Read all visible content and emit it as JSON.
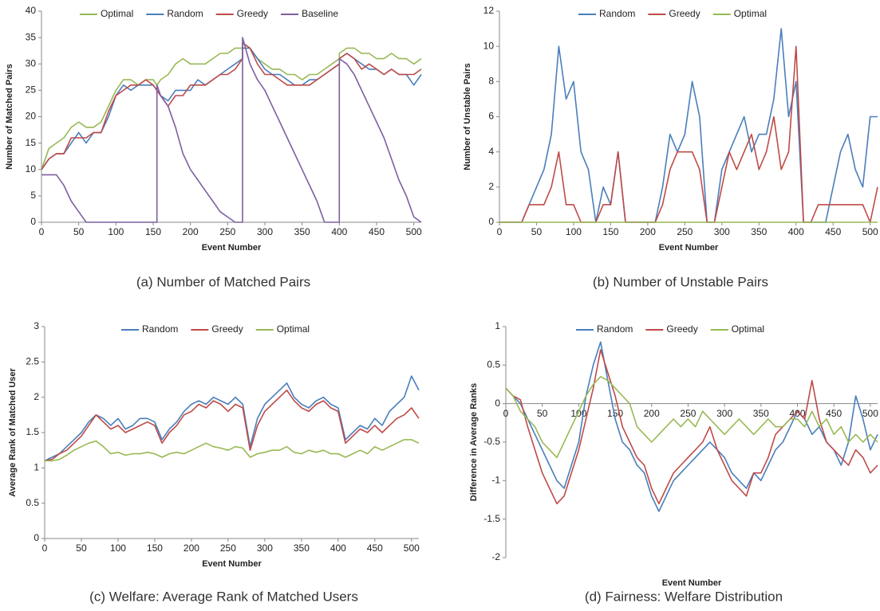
{
  "chart_data": [
    {
      "type": "line",
      "title": "(a) Number of Matched Pairs",
      "xlabel": "Event Number",
      "ylabel": "Number of Matched Pairs",
      "x": [
        0,
        10,
        20,
        30,
        40,
        50,
        60,
        70,
        80,
        90,
        100,
        110,
        120,
        130,
        140,
        150,
        155,
        155,
        160,
        170,
        180,
        190,
        200,
        210,
        220,
        230,
        240,
        250,
        260,
        270,
        270,
        280,
        290,
        300,
        310,
        320,
        330,
        340,
        350,
        360,
        370,
        380,
        390,
        400,
        400,
        410,
        420,
        430,
        440,
        450,
        460,
        470,
        480,
        490,
        500,
        510
      ],
      "xlim": [
        0,
        510
      ],
      "xticks": [
        0,
        50,
        100,
        150,
        200,
        250,
        300,
        350,
        400,
        450,
        500
      ],
      "ylim": [
        0,
        40
      ],
      "yticks": [
        0,
        5,
        10,
        15,
        20,
        25,
        30,
        35,
        40
      ],
      "series": [
        {
          "name": "Optimal",
          "color": "#98b954",
          "values": [
            10,
            14,
            15,
            16,
            18,
            19,
            18,
            18,
            19,
            22,
            25,
            27,
            27,
            26,
            27,
            27,
            26,
            26,
            27,
            28,
            30,
            31,
            30,
            30,
            30,
            31,
            32,
            32,
            33,
            33,
            34,
            33,
            31,
            30,
            29,
            29,
            28,
            28,
            27,
            28,
            28,
            29,
            30,
            31,
            32,
            33,
            33,
            32,
            32,
            31,
            31,
            32,
            31,
            31,
            30,
            31
          ]
        },
        {
          "name": "Random",
          "color": "#4a7ebb",
          "values": [
            10,
            12,
            13,
            13,
            15,
            17,
            15,
            17,
            17,
            20,
            24,
            26,
            25,
            26,
            26,
            26,
            25,
            25,
            24,
            23,
            25,
            25,
            25,
            27,
            26,
            27,
            28,
            29,
            30,
            31,
            33,
            33,
            31,
            29,
            28,
            28,
            27,
            26,
            26,
            27,
            27,
            28,
            29,
            30,
            31,
            32,
            31,
            30,
            29,
            29,
            28,
            29,
            28,
            28,
            26,
            28
          ]
        },
        {
          "name": "Greedy",
          "color": "#be4b48",
          "values": [
            10,
            12,
            13,
            13,
            16,
            16,
            16,
            17,
            17,
            21,
            24,
            25,
            26,
            26,
            27,
            26,
            25,
            25,
            24,
            22,
            24,
            24,
            26,
            26,
            26,
            27,
            28,
            28,
            29,
            31,
            34,
            33,
            30,
            28,
            28,
            27,
            26,
            26,
            26,
            26,
            27,
            28,
            29,
            30,
            31,
            32,
            31,
            29,
            30,
            29,
            28,
            29,
            28,
            28,
            28,
            29
          ]
        },
        {
          "name": "Baseline",
          "color": "#7d60a0",
          "values": [
            9,
            9,
            9,
            7,
            4,
            2,
            0,
            0,
            0,
            0,
            0,
            0,
            0,
            0,
            0,
            0,
            0,
            26,
            24,
            22,
            18,
            13,
            10,
            8,
            6,
            4,
            2,
            1,
            0,
            0,
            35,
            30,
            27,
            25,
            22,
            19,
            16,
            13,
            10,
            7,
            4,
            0,
            0,
            0,
            31,
            30,
            28,
            25,
            22,
            19,
            16,
            12,
            8,
            5,
            1,
            0
          ]
        }
      ]
    },
    {
      "type": "line",
      "title": "(b) Number of Unstable Pairs",
      "xlabel": "Event Number",
      "ylabel": "Number of Unstable Pairs",
      "x": [
        0,
        10,
        20,
        30,
        40,
        50,
        60,
        70,
        80,
        90,
        100,
        110,
        120,
        130,
        140,
        150,
        160,
        170,
        180,
        190,
        200,
        210,
        220,
        230,
        240,
        250,
        260,
        270,
        280,
        290,
        300,
        310,
        320,
        330,
        340,
        350,
        360,
        370,
        380,
        390,
        400,
        410,
        420,
        430,
        440,
        450,
        460,
        470,
        480,
        490,
        500,
        510
      ],
      "xlim": [
        0,
        510
      ],
      "xticks": [
        0,
        50,
        100,
        150,
        200,
        250,
        300,
        350,
        400,
        450,
        500
      ],
      "ylim": [
        0,
        12
      ],
      "yticks": [
        0,
        2,
        4,
        6,
        8,
        10,
        12
      ],
      "series": [
        {
          "name": "Random",
          "color": "#4a7ebb",
          "values": [
            0,
            0,
            0,
            0,
            1,
            2,
            3,
            5,
            10,
            7,
            8,
            4,
            3,
            0,
            2,
            1,
            4,
            0,
            0,
            0,
            0,
            0,
            2,
            5,
            4,
            5,
            8,
            6,
            0,
            0,
            3,
            4,
            5,
            6,
            4,
            5,
            5,
            7,
            11,
            6,
            8,
            0,
            0,
            0,
            0,
            2,
            4,
            5,
            3,
            2,
            6,
            6
          ]
        },
        {
          "name": "Greedy",
          "color": "#be4b48",
          "values": [
            0,
            0,
            0,
            0,
            1,
            1,
            1,
            2,
            4,
            1,
            1,
            0,
            0,
            0,
            1,
            1,
            4,
            0,
            0,
            0,
            0,
            0,
            1,
            3,
            4,
            4,
            4,
            3,
            0,
            0,
            2,
            4,
            3,
            4,
            5,
            3,
            4,
            6,
            3,
            4,
            10,
            0,
            0,
            1,
            1,
            1,
            1,
            1,
            1,
            1,
            0,
            2
          ]
        },
        {
          "name": "Optimal",
          "color": "#98b954",
          "values": [
            0,
            0,
            0,
            0,
            0,
            0,
            0,
            0,
            0,
            0,
            0,
            0,
            0,
            0,
            0,
            0,
            0,
            0,
            0,
            0,
            0,
            0,
            0,
            0,
            0,
            0,
            0,
            0,
            0,
            0,
            0,
            0,
            0,
            0,
            0,
            0,
            0,
            0,
            0,
            0,
            0,
            0,
            0,
            0,
            0,
            0,
            0,
            0,
            0,
            0,
            0,
            0
          ]
        }
      ]
    },
    {
      "type": "line",
      "title": "(c) Welfare: Average Rank of Matched Users",
      "xlabel": "Event Number",
      "ylabel": "Average Rank of Matched User",
      "x": [
        0,
        10,
        20,
        30,
        40,
        50,
        60,
        70,
        80,
        90,
        100,
        110,
        120,
        130,
        140,
        150,
        160,
        170,
        180,
        190,
        200,
        210,
        220,
        230,
        240,
        250,
        260,
        270,
        280,
        290,
        300,
        310,
        320,
        330,
        340,
        350,
        360,
        370,
        380,
        390,
        400,
        410,
        420,
        430,
        440,
        450,
        460,
        470,
        480,
        490,
        500,
        510
      ],
      "xlim": [
        0,
        510
      ],
      "xticks": [
        0,
        50,
        100,
        150,
        200,
        250,
        300,
        350,
        400,
        450,
        500
      ],
      "ylim": [
        0,
        3
      ],
      "yticks": [
        0,
        0.5,
        1,
        1.5,
        2,
        2.5,
        3
      ],
      "series": [
        {
          "name": "Random",
          "color": "#4a7ebb",
          "values": [
            1.1,
            1.15,
            1.2,
            1.3,
            1.4,
            1.5,
            1.65,
            1.75,
            1.7,
            1.6,
            1.7,
            1.55,
            1.6,
            1.7,
            1.7,
            1.65,
            1.4,
            1.55,
            1.65,
            1.8,
            1.9,
            1.95,
            1.9,
            2.0,
            1.95,
            1.9,
            2.0,
            1.9,
            1.3,
            1.7,
            1.9,
            2.0,
            2.1,
            2.2,
            2.0,
            1.9,
            1.85,
            1.95,
            2.0,
            1.9,
            1.85,
            1.4,
            1.5,
            1.6,
            1.55,
            1.7,
            1.6,
            1.8,
            1.9,
            2.0,
            2.3,
            2.1
          ]
        },
        {
          "name": "Greedy",
          "color": "#be4b48",
          "values": [
            1.1,
            1.12,
            1.2,
            1.25,
            1.35,
            1.45,
            1.6,
            1.75,
            1.65,
            1.55,
            1.6,
            1.5,
            1.55,
            1.6,
            1.65,
            1.6,
            1.35,
            1.5,
            1.6,
            1.75,
            1.8,
            1.9,
            1.85,
            1.95,
            1.9,
            1.8,
            1.9,
            1.85,
            1.25,
            1.6,
            1.8,
            1.9,
            2.0,
            2.1,
            1.95,
            1.85,
            1.8,
            1.9,
            1.95,
            1.85,
            1.8,
            1.35,
            1.45,
            1.55,
            1.5,
            1.6,
            1.5,
            1.6,
            1.7,
            1.75,
            1.85,
            1.7
          ]
        },
        {
          "name": "Optimal",
          "color": "#98b954",
          "values": [
            1.1,
            1.1,
            1.12,
            1.18,
            1.25,
            1.3,
            1.35,
            1.38,
            1.3,
            1.2,
            1.22,
            1.18,
            1.2,
            1.2,
            1.22,
            1.2,
            1.15,
            1.2,
            1.22,
            1.2,
            1.25,
            1.3,
            1.35,
            1.3,
            1.28,
            1.25,
            1.3,
            1.28,
            1.15,
            1.2,
            1.22,
            1.25,
            1.25,
            1.3,
            1.22,
            1.2,
            1.25,
            1.22,
            1.25,
            1.2,
            1.2,
            1.15,
            1.2,
            1.25,
            1.2,
            1.3,
            1.25,
            1.3,
            1.35,
            1.4,
            1.4,
            1.35
          ]
        }
      ]
    },
    {
      "type": "line",
      "title": "(d) Fairness: Welfare Distribution",
      "xlabel": "Event Number",
      "ylabel": "Difference in Average Ranks",
      "x": [
        0,
        10,
        20,
        30,
        40,
        50,
        60,
        70,
        80,
        90,
        100,
        110,
        120,
        130,
        140,
        150,
        160,
        170,
        180,
        190,
        200,
        210,
        220,
        230,
        240,
        250,
        260,
        270,
        280,
        290,
        300,
        310,
        320,
        330,
        340,
        350,
        360,
        370,
        380,
        390,
        400,
        410,
        420,
        430,
        440,
        450,
        460,
        470,
        480,
        490,
        500,
        510
      ],
      "xlim": [
        0,
        510
      ],
      "xticks": [
        0,
        50,
        100,
        150,
        200,
        250,
        300,
        350,
        400,
        450,
        500
      ],
      "ylim": [
        -2,
        1
      ],
      "yticks": [
        -2,
        -1.5,
        -1,
        -0.5,
        0,
        0.5,
        1
      ],
      "series": [
        {
          "name": "Random",
          "color": "#4a7ebb",
          "values": [
            0.2,
            0.1,
            0,
            -0.2,
            -0.4,
            -0.6,
            -0.8,
            -1.0,
            -1.1,
            -0.8,
            -0.5,
            0.1,
            0.5,
            0.8,
            0.3,
            -0.2,
            -0.5,
            -0.6,
            -0.8,
            -0.9,
            -1.2,
            -1.4,
            -1.2,
            -1.0,
            -0.9,
            -0.8,
            -0.7,
            -0.6,
            -0.5,
            -0.6,
            -0.7,
            -0.9,
            -1.0,
            -1.1,
            -0.9,
            -1.0,
            -0.8,
            -0.6,
            -0.5,
            -0.3,
            -0.1,
            -0.2,
            -0.4,
            -0.3,
            -0.5,
            -0.6,
            -0.8,
            -0.5,
            0.1,
            -0.2,
            -0.6,
            -0.4
          ]
        },
        {
          "name": "Greedy",
          "color": "#be4b48",
          "values": [
            0.2,
            0.1,
            0.05,
            -0.3,
            -0.6,
            -0.9,
            -1.1,
            -1.3,
            -1.2,
            -0.9,
            -0.6,
            -0.2,
            0.2,
            0.7,
            0.4,
            0.1,
            -0.3,
            -0.5,
            -0.7,
            -0.8,
            -1.1,
            -1.3,
            -1.1,
            -0.9,
            -0.8,
            -0.7,
            -0.6,
            -0.5,
            -0.3,
            -0.6,
            -0.8,
            -1.0,
            -1.1,
            -1.2,
            -0.9,
            -0.9,
            -0.7,
            -0.4,
            -0.3,
            -0.2,
            -0.1,
            -0.2,
            0.3,
            -0.2,
            -0.5,
            -0.6,
            -0.7,
            -0.8,
            -0.6,
            -0.7,
            -0.9,
            -0.8
          ]
        },
        {
          "name": "Optimal",
          "color": "#98b954",
          "values": [
            0.2,
            0.1,
            -0.1,
            -0.2,
            -0.3,
            -0.5,
            -0.6,
            -0.7,
            -0.5,
            -0.3,
            -0.1,
            0.1,
            0.25,
            0.35,
            0.3,
            0.2,
            0.1,
            0,
            -0.3,
            -0.4,
            -0.5,
            -0.4,
            -0.3,
            -0.2,
            -0.3,
            -0.2,
            -0.3,
            -0.1,
            -0.2,
            -0.3,
            -0.4,
            -0.3,
            -0.2,
            -0.3,
            -0.4,
            -0.3,
            -0.2,
            -0.3,
            -0.3,
            -0.2,
            -0.2,
            -0.3,
            -0.1,
            -0.3,
            -0.2,
            -0.4,
            -0.3,
            -0.5,
            -0.4,
            -0.5,
            -0.4,
            -0.5
          ]
        }
      ]
    }
  ]
}
